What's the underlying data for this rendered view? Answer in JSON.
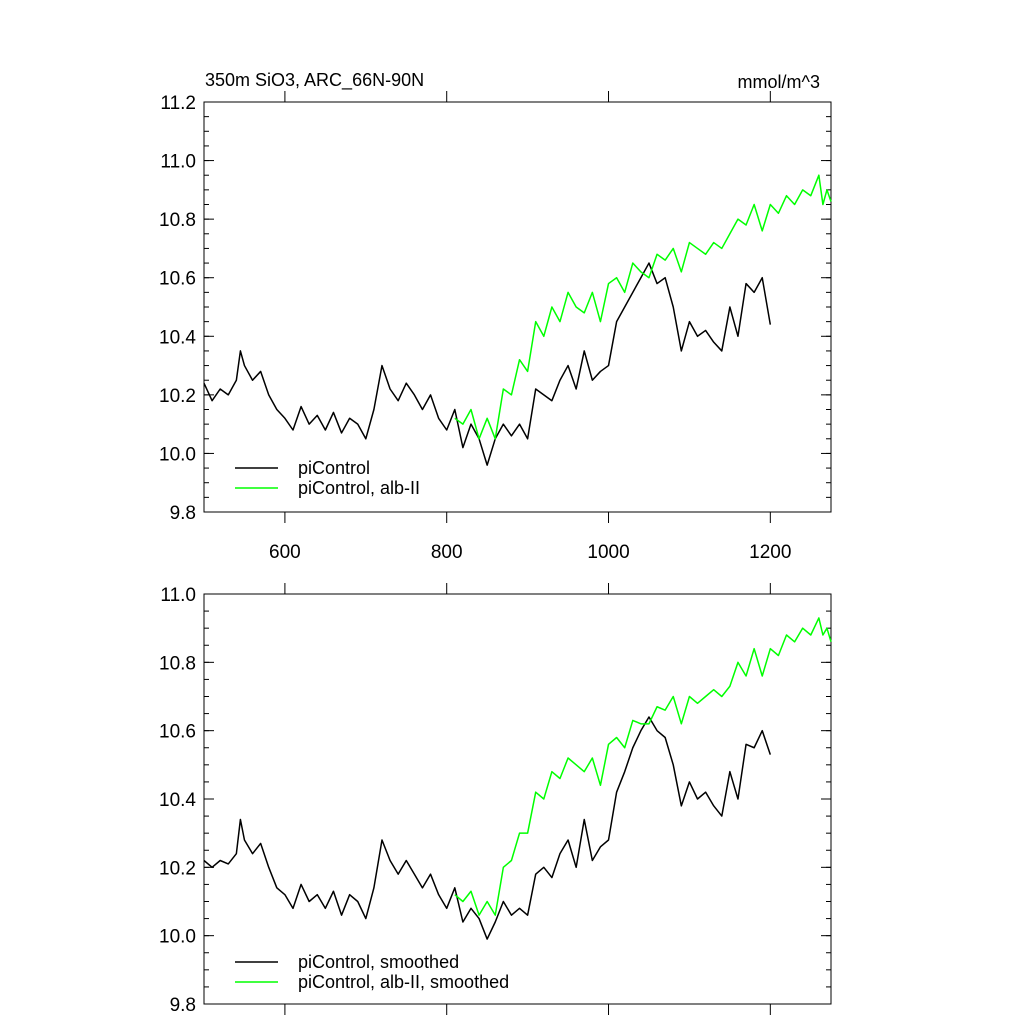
{
  "chart_data": [
    {
      "type": "line",
      "title": "350m SiO3, ARC_66N-90N",
      "units": "mmol/m^3",
      "xlim": [
        500,
        1275
      ],
      "ylim": [
        9.8,
        11.2
      ],
      "x_ticks": [
        600,
        800,
        1000,
        1200
      ],
      "y_ticks": [
        9.8,
        10.0,
        10.2,
        10.4,
        10.6,
        10.8,
        11.0,
        11.2
      ],
      "y_tick_labels": [
        "9.8",
        "10.0",
        "10.2",
        "10.4",
        "10.6",
        "10.8",
        "11.0",
        "11.2"
      ],
      "legend_position": "bottom-left",
      "series": [
        {
          "name": "piControl",
          "color": "#000000",
          "x": [
            500,
            510,
            520,
            530,
            540,
            545,
            550,
            560,
            570,
            580,
            590,
            600,
            610,
            620,
            630,
            640,
            650,
            660,
            670,
            680,
            690,
            700,
            710,
            720,
            730,
            740,
            750,
            760,
            770,
            780,
            790,
            800,
            810,
            820,
            830,
            840,
            850,
            860,
            870,
            880,
            890,
            900,
            910,
            920,
            930,
            940,
            950,
            960,
            970,
            980,
            990,
            1000,
            1010,
            1020,
            1030,
            1040,
            1050,
            1060,
            1070,
            1080,
            1090,
            1100,
            1110,
            1120,
            1130,
            1140,
            1150,
            1160,
            1170,
            1180,
            1190,
            1200
          ],
          "values": [
            10.24,
            10.18,
            10.22,
            10.2,
            10.25,
            10.35,
            10.3,
            10.25,
            10.28,
            10.2,
            10.15,
            10.12,
            10.08,
            10.16,
            10.1,
            10.13,
            10.08,
            10.14,
            10.07,
            10.12,
            10.1,
            10.05,
            10.15,
            10.3,
            10.22,
            10.18,
            10.24,
            10.2,
            10.15,
            10.2,
            10.12,
            10.08,
            10.15,
            10.02,
            10.1,
            10.05,
            9.96,
            10.05,
            10.1,
            10.06,
            10.1,
            10.05,
            10.22,
            10.2,
            10.18,
            10.25,
            10.3,
            10.22,
            10.35,
            10.25,
            10.28,
            10.3,
            10.45,
            10.5,
            10.55,
            10.6,
            10.65,
            10.58,
            10.6,
            10.5,
            10.35,
            10.45,
            10.4,
            10.42,
            10.38,
            10.35,
            10.5,
            10.4,
            10.58,
            10.55,
            10.6,
            10.44
          ]
        },
        {
          "name": "piControl, alb-II",
          "color": "#00ff00",
          "x": [
            810,
            820,
            830,
            840,
            850,
            860,
            870,
            880,
            890,
            900,
            910,
            920,
            930,
            940,
            950,
            960,
            970,
            980,
            990,
            1000,
            1010,
            1020,
            1030,
            1040,
            1050,
            1060,
            1070,
            1080,
            1090,
            1100,
            1110,
            1120,
            1130,
            1140,
            1150,
            1160,
            1170,
            1180,
            1190,
            1200,
            1210,
            1220,
            1230,
            1240,
            1250,
            1260,
            1265,
            1270,
            1275
          ],
          "values": [
            10.12,
            10.1,
            10.15,
            10.05,
            10.12,
            10.05,
            10.22,
            10.2,
            10.32,
            10.28,
            10.45,
            10.4,
            10.5,
            10.45,
            10.55,
            10.5,
            10.48,
            10.55,
            10.45,
            10.58,
            10.6,
            10.55,
            10.65,
            10.62,
            10.6,
            10.68,
            10.66,
            10.7,
            10.62,
            10.72,
            10.7,
            10.68,
            10.72,
            10.7,
            10.75,
            10.8,
            10.78,
            10.85,
            10.76,
            10.85,
            10.82,
            10.88,
            10.85,
            10.9,
            10.88,
            10.95,
            10.85,
            10.9,
            10.86
          ]
        }
      ]
    },
    {
      "type": "line",
      "xlim": [
        500,
        1275
      ],
      "ylim": [
        9.8,
        11.0
      ],
      "x_ticks": [
        600,
        800,
        1000,
        1200
      ],
      "y_ticks": [
        9.8,
        10.0,
        10.2,
        10.4,
        10.6,
        10.8,
        11.0
      ],
      "y_tick_labels": [
        "9.8",
        "10.0",
        "10.2",
        "10.4",
        "10.6",
        "10.8",
        "11.0"
      ],
      "legend_position": "bottom-left",
      "series": [
        {
          "name": "piControl, smoothed",
          "color": "#000000",
          "x": [
            500,
            510,
            520,
            530,
            540,
            545,
            550,
            560,
            570,
            580,
            590,
            600,
            610,
            620,
            630,
            640,
            650,
            660,
            670,
            680,
            690,
            700,
            710,
            720,
            730,
            740,
            750,
            760,
            770,
            780,
            790,
            800,
            810,
            820,
            830,
            840,
            850,
            860,
            870,
            880,
            890,
            900,
            910,
            920,
            930,
            940,
            950,
            960,
            970,
            980,
            990,
            1000,
            1010,
            1020,
            1030,
            1040,
            1050,
            1060,
            1070,
            1080,
            1090,
            1100,
            1110,
            1120,
            1130,
            1140,
            1150,
            1160,
            1170,
            1180,
            1190,
            1200
          ],
          "values": [
            10.22,
            10.2,
            10.22,
            10.21,
            10.24,
            10.34,
            10.28,
            10.24,
            10.27,
            10.2,
            10.14,
            10.12,
            10.08,
            10.15,
            10.1,
            10.12,
            10.08,
            10.13,
            10.06,
            10.12,
            10.1,
            10.05,
            10.14,
            10.28,
            10.22,
            10.18,
            10.22,
            10.18,
            10.14,
            10.18,
            10.12,
            10.08,
            10.14,
            10.04,
            10.08,
            10.05,
            9.99,
            10.04,
            10.1,
            10.06,
            10.08,
            10.06,
            10.18,
            10.2,
            10.17,
            10.24,
            10.28,
            10.2,
            10.34,
            10.22,
            10.26,
            10.28,
            10.42,
            10.48,
            10.55,
            10.6,
            10.64,
            10.6,
            10.58,
            10.5,
            10.38,
            10.45,
            10.4,
            10.42,
            10.38,
            10.35,
            10.48,
            10.4,
            10.56,
            10.55,
            10.6,
            10.53
          ]
        },
        {
          "name": "piControl, alb-II, smoothed",
          "color": "#00ff00",
          "x": [
            810,
            820,
            830,
            840,
            850,
            860,
            870,
            880,
            890,
            900,
            910,
            920,
            930,
            940,
            950,
            960,
            970,
            980,
            990,
            1000,
            1010,
            1020,
            1030,
            1040,
            1050,
            1060,
            1070,
            1080,
            1090,
            1100,
            1110,
            1120,
            1130,
            1140,
            1150,
            1160,
            1170,
            1180,
            1190,
            1200,
            1210,
            1220,
            1230,
            1240,
            1250,
            1260,
            1265,
            1270,
            1275
          ],
          "values": [
            10.12,
            10.1,
            10.13,
            10.06,
            10.1,
            10.06,
            10.2,
            10.22,
            10.3,
            10.3,
            10.42,
            10.4,
            10.48,
            10.46,
            10.52,
            10.5,
            10.48,
            10.52,
            10.44,
            10.56,
            10.58,
            10.55,
            10.63,
            10.62,
            10.62,
            10.67,
            10.66,
            10.7,
            10.62,
            10.7,
            10.68,
            10.7,
            10.72,
            10.7,
            10.73,
            10.8,
            10.76,
            10.84,
            10.76,
            10.84,
            10.82,
            10.88,
            10.86,
            10.9,
            10.88,
            10.93,
            10.88,
            10.9,
            10.86
          ]
        }
      ]
    }
  ]
}
